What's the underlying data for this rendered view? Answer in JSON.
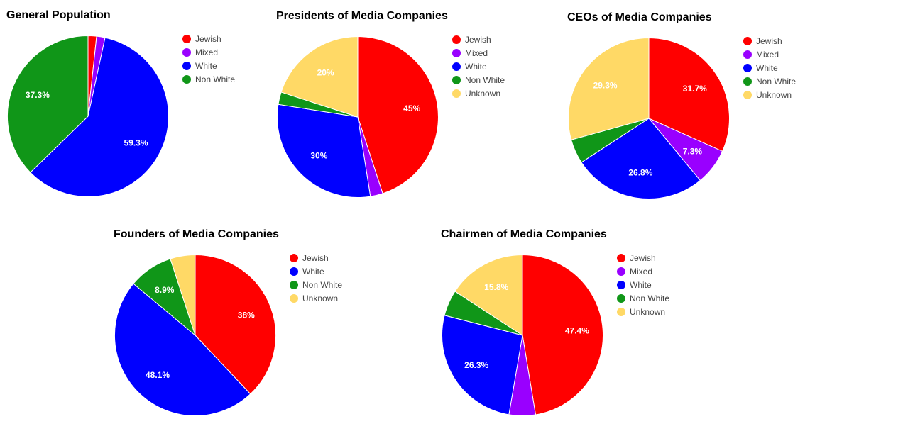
{
  "colors": {
    "Jewish": "#ff0000",
    "Mixed": "#9900ff",
    "White": "#0000ff",
    "Non White": "#109618",
    "Unknown": "#ffd966"
  },
  "chart_data": [
    {
      "type": "pie",
      "title": "General Population",
      "legend_position": "right",
      "labels": [
        "Jewish",
        "Mixed",
        "White",
        "Non White"
      ],
      "values": [
        1.7,
        1.7,
        59.3,
        37.3
      ],
      "slice_labels": [
        "",
        "",
        "59.3%",
        "37.3%"
      ]
    },
    {
      "type": "pie",
      "title": "Presidents of Media Companies",
      "legend_position": "right",
      "labels": [
        "Jewish",
        "Mixed",
        "White",
        "Non White",
        "Unknown"
      ],
      "values": [
        45,
        2.5,
        30,
        2.5,
        20
      ],
      "slice_labels": [
        "45%",
        "",
        "30%",
        "",
        "20%"
      ]
    },
    {
      "type": "pie",
      "title": "CEOs of Media Companies",
      "legend_position": "right",
      "labels": [
        "Jewish",
        "Mixed",
        "White",
        "Non White",
        "Unknown"
      ],
      "values": [
        31.7,
        7.3,
        26.8,
        4.9,
        29.3
      ],
      "slice_labels": [
        "31.7%",
        "7.3%",
        "26.8%",
        "",
        "29.3%"
      ]
    },
    {
      "type": "pie",
      "title": "Founders of Media Companies",
      "legend_position": "right",
      "labels": [
        "Jewish",
        "White",
        "Non White",
        "Unknown"
      ],
      "values": [
        38,
        48.1,
        8.9,
        5
      ],
      "slice_labels": [
        "38%",
        "48.1%",
        "8.9%",
        ""
      ]
    },
    {
      "type": "pie",
      "title": "Chairmen of Media Companies",
      "legend_position": "right",
      "labels": [
        "Jewish",
        "Mixed",
        "White",
        "Non White",
        "Unknown"
      ],
      "values": [
        47.4,
        5.3,
        26.3,
        5.2,
        15.8
      ],
      "slice_labels": [
        "47.4%",
        "",
        "26.3%",
        "",
        "15.8%"
      ]
    }
  ]
}
